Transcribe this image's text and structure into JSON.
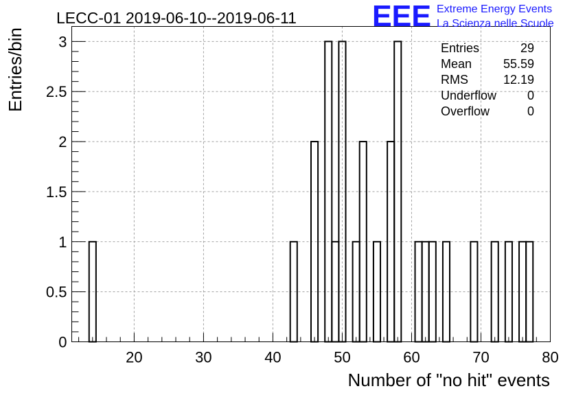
{
  "chart_data": {
    "type": "bar",
    "title": "LECC-01 2019-06-10--2019-06-11",
    "xlabel": "Number of \"no hit\" events",
    "ylabel": "Entries/bin",
    "xlim": [
      11,
      80
    ],
    "ylim": [
      0,
      3.15
    ],
    "grid": true,
    "x_ticks": [
      "20",
      "30",
      "40",
      "50",
      "60",
      "70",
      "80"
    ],
    "y_ticks": [
      "0",
      "0.5",
      "1",
      "1.5",
      "2",
      "2.5",
      "3"
    ],
    "bin_width": 1,
    "bins": [
      {
        "x": 14,
        "y": 1
      },
      {
        "x": 43,
        "y": 1
      },
      {
        "x": 46,
        "y": 2
      },
      {
        "x": 48,
        "y": 3
      },
      {
        "x": 49,
        "y": 1
      },
      {
        "x": 50,
        "y": 3
      },
      {
        "x": 52,
        "y": 1
      },
      {
        "x": 53,
        "y": 2
      },
      {
        "x": 55,
        "y": 1
      },
      {
        "x": 57,
        "y": 2
      },
      {
        "x": 58,
        "y": 3
      },
      {
        "x": 61,
        "y": 1
      },
      {
        "x": 62,
        "y": 1
      },
      {
        "x": 63,
        "y": 1
      },
      {
        "x": 65,
        "y": 1
      },
      {
        "x": 69,
        "y": 1
      },
      {
        "x": 72,
        "y": 1
      },
      {
        "x": 74,
        "y": 1
      },
      {
        "x": 76,
        "y": 1
      },
      {
        "x": 77,
        "y": 1
      }
    ],
    "stats": [
      {
        "label": "Entries",
        "value": "29"
      },
      {
        "label": "Mean",
        "value": "55.59"
      },
      {
        "label": "RMS",
        "value": "12.19"
      },
      {
        "label": "Underflow",
        "value": "0"
      },
      {
        "label": "Overflow",
        "value": "0"
      }
    ],
    "line_color": "#000000",
    "grid_color": "#a0a0a0"
  },
  "logo": {
    "letters": "EEE",
    "line1": "Extreme Energy Events",
    "line2": "La Scienza nelle Scuole",
    "color": "#1a1aff"
  }
}
